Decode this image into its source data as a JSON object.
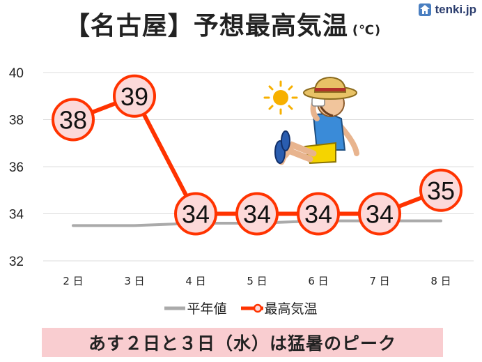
{
  "title": {
    "text": "【名古屋】予想最高気温",
    "unit": "(℃)"
  },
  "brand": {
    "name": "tenki.jp"
  },
  "legend": {
    "normal": "平年値",
    "forecast": "最高気温"
  },
  "banner": {
    "text": "あす２日と３日（水）は猛暑のピーク"
  },
  "colors": {
    "forecast": "#ff3300",
    "marker_fill": "#fcd9d9",
    "normal": "#aaaaaa",
    "banner": "#f9cdd0"
  },
  "illustration": {
    "subject": "person-in-straw-hat-sitting-under-sun"
  },
  "chart_data": {
    "type": "line",
    "categories": [
      "2 日",
      "3 日",
      "4 日",
      "5 日",
      "6 日",
      "7 日",
      "8 日"
    ],
    "series": [
      {
        "name": "最高気温",
        "values": [
          38,
          39,
          34,
          34,
          34,
          34,
          35
        ]
      },
      {
        "name": "平年値",
        "values": [
          33.5,
          33.5,
          33.6,
          33.6,
          33.7,
          33.7,
          33.7
        ]
      }
    ],
    "ylim": [
      32,
      40
    ],
    "yticks": [
      32,
      34,
      36,
      38,
      40
    ],
    "grid": true,
    "legend_position": "bottom"
  }
}
